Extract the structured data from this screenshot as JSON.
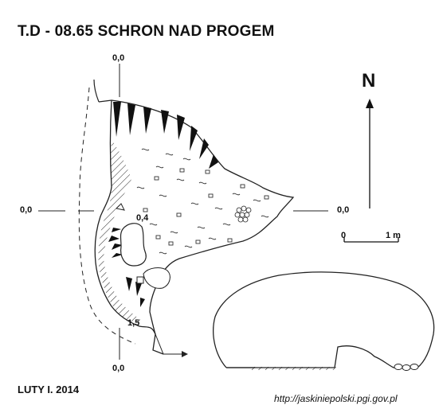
{
  "title": "T.D - 08.65  SCHRON NAD PROGEM",
  "north_label": "N",
  "elevations": {
    "top": "0,0",
    "left": "0,0",
    "right": "0,0",
    "bottom": "0,0",
    "inner_point": "0,4",
    "lower_point": "1,5"
  },
  "scale": {
    "start": "0",
    "end": "1 m"
  },
  "date": "LUTY I. 2014",
  "source_url": "http://jaskiniepolski.pgi.gov.pl"
}
